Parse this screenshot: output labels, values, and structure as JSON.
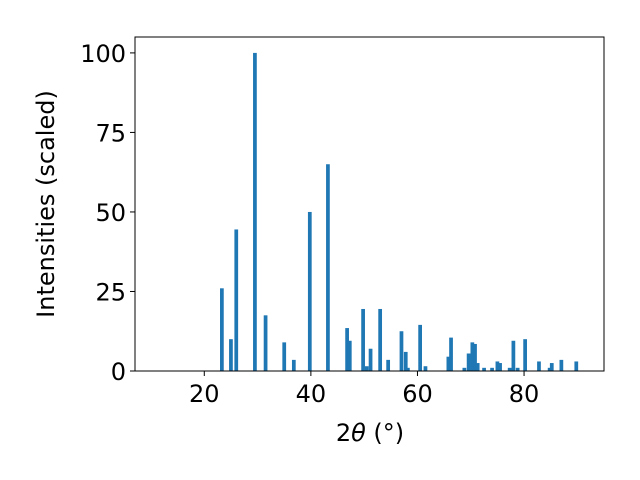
{
  "chart_data": {
    "type": "bar",
    "xlabel_prefix": "2",
    "xlabel_symbol": "θ",
    "xlabel_unit": " (°)",
    "ylabel": "Intensities (scaled)",
    "xlim": [
      7,
      95
    ],
    "ylim": [
      0,
      105
    ],
    "xticks": [
      20,
      40,
      60,
      80
    ],
    "yticks": [
      0,
      25,
      50,
      75,
      100
    ],
    "bar_color": "#1f77b4",
    "bar_width": 0.7,
    "x": [
      23.3,
      25.0,
      26.0,
      29.5,
      31.5,
      35.0,
      36.8,
      39.8,
      43.2,
      46.8,
      47.3,
      49.8,
      50.5,
      51.2,
      53.0,
      54.5,
      57.0,
      57.8,
      58.2,
      60.5,
      61.5,
      65.8,
      66.3,
      68.8,
      69.6,
      70.3,
      70.8,
      71.3,
      72.5,
      74.0,
      75.0,
      75.5,
      77.3,
      78.0,
      78.8,
      80.2,
      82.8,
      84.8,
      85.2,
      87.0,
      89.8
    ],
    "values": [
      26,
      10,
      44.5,
      100,
      17.5,
      9,
      3.5,
      50,
      65,
      13.5,
      9.5,
      19.5,
      1.5,
      7,
      19.5,
      3.5,
      12.5,
      6,
      1,
      14.5,
      1.5,
      4.5,
      10.5,
      1,
      5.5,
      9,
      8.5,
      2.5,
      1,
      1,
      3,
      2.5,
      1,
      9.5,
      1,
      10,
      3,
      1,
      2.5,
      3.5,
      3
    ]
  }
}
